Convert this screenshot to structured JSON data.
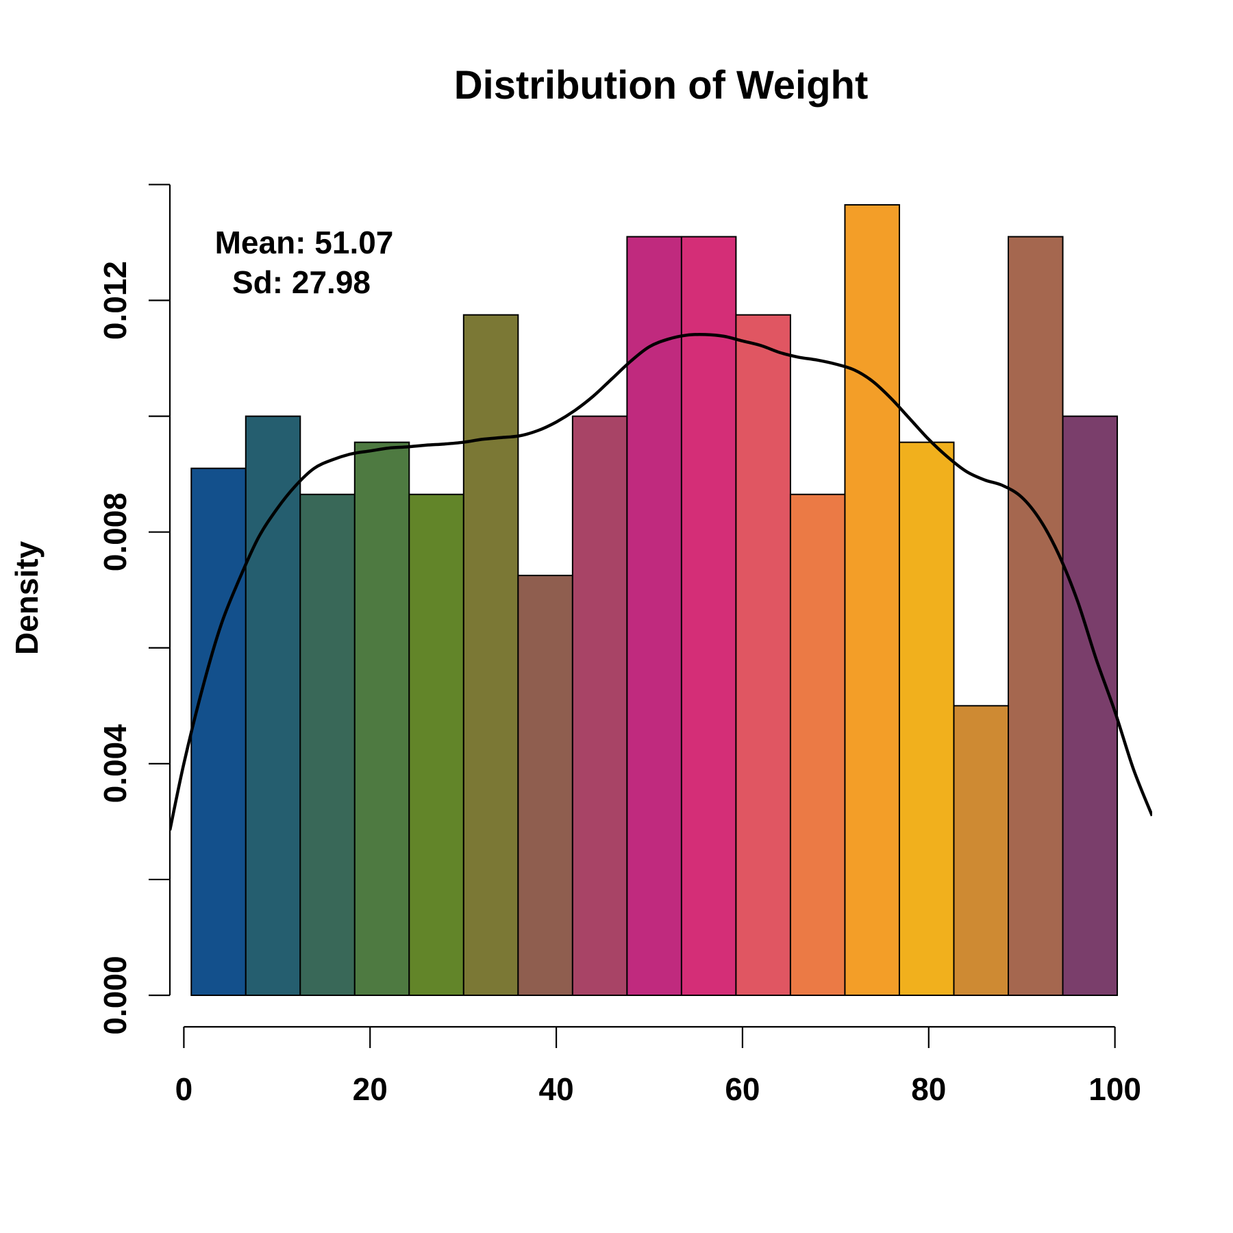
{
  "chart_data": {
    "type": "bar",
    "title": "Distribution of Weight",
    "xlabel": "",
    "ylabel": "Density",
    "xlim": [
      -1.5,
      104
    ],
    "ylim": [
      0,
      0.0141
    ],
    "x_ticks": [
      0,
      20,
      40,
      60,
      80,
      100
    ],
    "x_tick_labels": [
      "0",
      "20",
      "40",
      "60",
      "80",
      "100"
    ],
    "y_ticks": [
      0.0,
      0.002,
      0.004,
      0.006,
      0.008,
      0.01,
      0.012,
      0.014
    ],
    "y_tick_labels": [
      "0.000",
      "",
      "0.004",
      "",
      "0.008",
      "",
      "0.012",
      ""
    ],
    "bin_edges": [
      0.8,
      6.65,
      12.5,
      18.35,
      24.2,
      30.05,
      35.9,
      41.75,
      47.6,
      53.45,
      59.3,
      65.15,
      71.0,
      76.85,
      82.7,
      88.55,
      94.4,
      100.25
    ],
    "values": [
      0.0091,
      0.01,
      0.00865,
      0.00955,
      0.00865,
      0.01175,
      0.00725,
      0.01,
      0.0131,
      0.0131,
      0.01175,
      0.00865,
      0.01365,
      0.00955,
      0.005,
      0.0131,
      0.01
    ],
    "colors": [
      "#13508C",
      "#255E6F",
      "#396858",
      "#4E7A41",
      "#628529",
      "#7B7835",
      "#8F5E4F",
      "#A84466",
      "#C02A7E",
      "#D42E77",
      "#E05662",
      "#EB7A45",
      "#F39E28",
      "#F1B01D",
      "#CE8A33",
      "#A5674F",
      "#7A3E6B"
    ],
    "density": {
      "name": "",
      "x": [
        -1.5,
        0,
        2,
        4,
        6,
        8,
        10,
        12,
        14,
        16,
        18,
        20,
        22,
        24,
        26,
        28,
        30,
        32,
        34,
        36,
        38,
        40,
        42,
        44,
        46,
        48,
        50,
        52,
        54,
        56,
        58,
        60,
        62,
        64,
        66,
        68,
        70,
        72,
        74,
        76,
        78,
        80,
        82,
        84,
        86,
        88,
        90,
        92,
        94,
        96,
        98,
        100,
        102,
        104
      ],
      "y": [
        0.00285,
        0.004,
        0.0053,
        0.0064,
        0.0072,
        0.0079,
        0.0084,
        0.0088,
        0.0091,
        0.00925,
        0.00935,
        0.0094,
        0.00945,
        0.00947,
        0.0095,
        0.00952,
        0.00955,
        0.0096,
        0.00963,
        0.00966,
        0.00975,
        0.0099,
        0.0101,
        0.01035,
        0.01065,
        0.01095,
        0.0112,
        0.01133,
        0.0114,
        0.01141,
        0.01138,
        0.0113,
        0.01122,
        0.0111,
        0.01102,
        0.01097,
        0.0109,
        0.0108,
        0.0106,
        0.0103,
        0.00995,
        0.0096,
        0.0093,
        0.00905,
        0.0089,
        0.0088,
        0.0086,
        0.0082,
        0.0076,
        0.0068,
        0.0058,
        0.0049,
        0.0039,
        0.0031
      ]
    },
    "annotation_mean": "Mean: 51.07",
    "annotation_sd": "Sd: 27.98",
    "grid": false,
    "legend": "none"
  }
}
